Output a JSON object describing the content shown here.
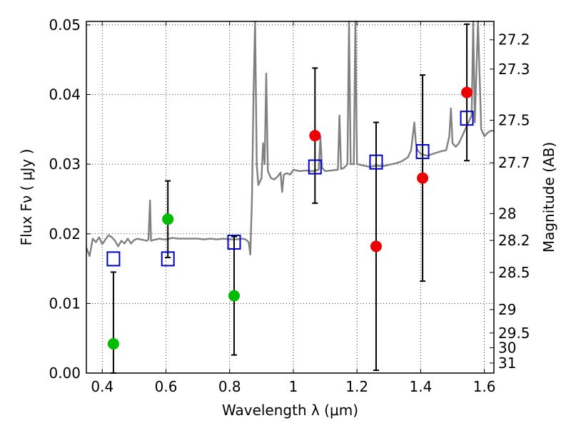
{
  "chart_data": {
    "type": "scatter",
    "xlabel": "Wavelength  λ (μm)",
    "ylabel": "Flux  Fν  ( μJy )",
    "ylabel_right": "Magnitude (AB)",
    "xlim": [
      0.35,
      1.63
    ],
    "ylim": [
      0.0,
      0.0505
    ],
    "grid": true,
    "x_ticks": [
      0.4,
      0.6,
      0.8,
      1.0,
      1.2,
      1.4,
      1.6
    ],
    "x_tick_labels": [
      "0.4",
      "0.6",
      "0.8",
      "1",
      "1.2",
      "1.4",
      "1.6"
    ],
    "y_ticks": [
      0.0,
      0.01,
      0.02,
      0.03,
      0.04,
      0.05
    ],
    "y_tick_labels": [
      "0.00",
      "0.01",
      "0.02",
      "0.03",
      "0.04",
      "0.05"
    ],
    "mag_ticks": [
      "27.2",
      "27.3",
      "27.5",
      "27.7",
      "28",
      "28.2",
      "28.5",
      "29",
      "29.5",
      "30",
      "31"
    ],
    "colors": {
      "spectrum": "#808080",
      "model": "#0000cc",
      "optical": "#00bb00",
      "nir": "#ee0000",
      "errorbar": "#000000"
    },
    "series": [
      {
        "marker": "circle",
        "color": "#00bb00",
        "points": [
          {
            "x": 0.435,
            "y": 0.0042,
            "err": 0.0103
          },
          {
            "x": 0.606,
            "y": 0.0221,
            "err": 0.0055
          },
          {
            "x": 0.814,
            "y": 0.0111,
            "err": 0.0085
          }
        ]
      },
      {
        "marker": "circle",
        "color": "#ee0000",
        "points": [
          {
            "x": 1.068,
            "y": 0.0341,
            "err": 0.0097
          },
          {
            "x": 1.26,
            "y": 0.0182,
            "err": 0.0178
          },
          {
            "x": 1.406,
            "y": 0.028,
            "err": 0.0148
          },
          {
            "x": 1.545,
            "y": 0.0403,
            "err": 0.0098
          }
        ]
      },
      {
        "marker": "open-square",
        "color": "#0000cc",
        "points": [
          {
            "x": 0.435,
            "y": 0.0164
          },
          {
            "x": 0.606,
            "y": 0.0164
          },
          {
            "x": 0.814,
            "y": 0.0188
          },
          {
            "x": 1.068,
            "y": 0.0296
          },
          {
            "x": 1.26,
            "y": 0.0303
          },
          {
            "x": 1.406,
            "y": 0.0318
          },
          {
            "x": 1.545,
            "y": 0.0366
          }
        ]
      }
    ],
    "spectrum": [
      [
        0.35,
        0.018
      ],
      [
        0.36,
        0.0168
      ],
      [
        0.37,
        0.0193
      ],
      [
        0.38,
        0.0188
      ],
      [
        0.39,
        0.0195
      ],
      [
        0.4,
        0.0185
      ],
      [
        0.41,
        0.0192
      ],
      [
        0.42,
        0.0198
      ],
      [
        0.43,
        0.0195
      ],
      [
        0.44,
        0.019
      ],
      [
        0.45,
        0.0182
      ],
      [
        0.46,
        0.019
      ],
      [
        0.47,
        0.0186
      ],
      [
        0.48,
        0.0193
      ],
      [
        0.49,
        0.0186
      ],
      [
        0.5,
        0.0191
      ],
      [
        0.51,
        0.0193
      ],
      [
        0.52,
        0.0192
      ],
      [
        0.53,
        0.0191
      ],
      [
        0.54,
        0.019
      ],
      [
        0.545,
        0.0192
      ],
      [
        0.55,
        0.0248
      ],
      [
        0.553,
        0.019
      ],
      [
        0.56,
        0.0191
      ],
      [
        0.57,
        0.0192
      ],
      [
        0.58,
        0.0193
      ],
      [
        0.59,
        0.0192
      ],
      [
        0.6,
        0.0192
      ],
      [
        0.61,
        0.0193
      ],
      [
        0.62,
        0.0194
      ],
      [
        0.64,
        0.0193
      ],
      [
        0.66,
        0.0193
      ],
      [
        0.68,
        0.0193
      ],
      [
        0.7,
        0.0193
      ],
      [
        0.72,
        0.0192
      ],
      [
        0.74,
        0.0193
      ],
      [
        0.76,
        0.0192
      ],
      [
        0.78,
        0.0193
      ],
      [
        0.8,
        0.0192
      ],
      [
        0.82,
        0.0192
      ],
      [
        0.84,
        0.0193
      ],
      [
        0.85,
        0.0192
      ],
      [
        0.86,
        0.0188
      ],
      [
        0.865,
        0.017
      ],
      [
        0.87,
        0.025
      ],
      [
        0.875,
        0.04
      ],
      [
        0.88,
        0.0505
      ],
      [
        0.885,
        0.03
      ],
      [
        0.89,
        0.027
      ],
      [
        0.9,
        0.028
      ],
      [
        0.905,
        0.033
      ],
      [
        0.91,
        0.03
      ],
      [
        0.915,
        0.043
      ],
      [
        0.92,
        0.029
      ],
      [
        0.93,
        0.028
      ],
      [
        0.94,
        0.0278
      ],
      [
        0.95,
        0.0282
      ],
      [
        0.96,
        0.0288
      ],
      [
        0.965,
        0.026
      ],
      [
        0.97,
        0.0285
      ],
      [
        0.98,
        0.0287
      ],
      [
        0.99,
        0.0285
      ],
      [
        1.0,
        0.0292
      ],
      [
        1.02,
        0.029
      ],
      [
        1.04,
        0.0291
      ],
      [
        1.06,
        0.029
      ],
      [
        1.08,
        0.0292
      ],
      [
        1.085,
        0.034
      ],
      [
        1.09,
        0.0295
      ],
      [
        1.1,
        0.029
      ],
      [
        1.12,
        0.0291
      ],
      [
        1.14,
        0.0292
      ],
      [
        1.145,
        0.037
      ],
      [
        1.15,
        0.0293
      ],
      [
        1.16,
        0.0295
      ],
      [
        1.17,
        0.03
      ],
      [
        1.175,
        0.0505
      ],
      [
        1.18,
        0.03
      ],
      [
        1.19,
        0.03
      ],
      [
        1.195,
        0.0505
      ],
      [
        1.2,
        0.03
      ],
      [
        1.22,
        0.0298
      ],
      [
        1.24,
        0.0296
      ],
      [
        1.26,
        0.0298
      ],
      [
        1.28,
        0.0297
      ],
      [
        1.3,
        0.0299
      ],
      [
        1.32,
        0.0301
      ],
      [
        1.34,
        0.0304
      ],
      [
        1.36,
        0.031
      ],
      [
        1.37,
        0.032
      ],
      [
        1.38,
        0.036
      ],
      [
        1.385,
        0.033
      ],
      [
        1.39,
        0.032
      ],
      [
        1.4,
        0.0315
      ],
      [
        1.42,
        0.0312
      ],
      [
        1.44,
        0.0315
      ],
      [
        1.46,
        0.0318
      ],
      [
        1.48,
        0.032
      ],
      [
        1.49,
        0.034
      ],
      [
        1.495,
        0.038
      ],
      [
        1.5,
        0.033
      ],
      [
        1.51,
        0.0325
      ],
      [
        1.52,
        0.033
      ],
      [
        1.53,
        0.034
      ],
      [
        1.54,
        0.035
      ],
      [
        1.55,
        0.036
      ],
      [
        1.56,
        0.037
      ],
      [
        1.565,
        0.0505
      ],
      [
        1.57,
        0.036
      ],
      [
        1.58,
        0.0505
      ],
      [
        1.59,
        0.035
      ],
      [
        1.6,
        0.034
      ],
      [
        1.61,
        0.0345
      ],
      [
        1.62,
        0.0348
      ],
      [
        1.63,
        0.0348
      ]
    ]
  }
}
